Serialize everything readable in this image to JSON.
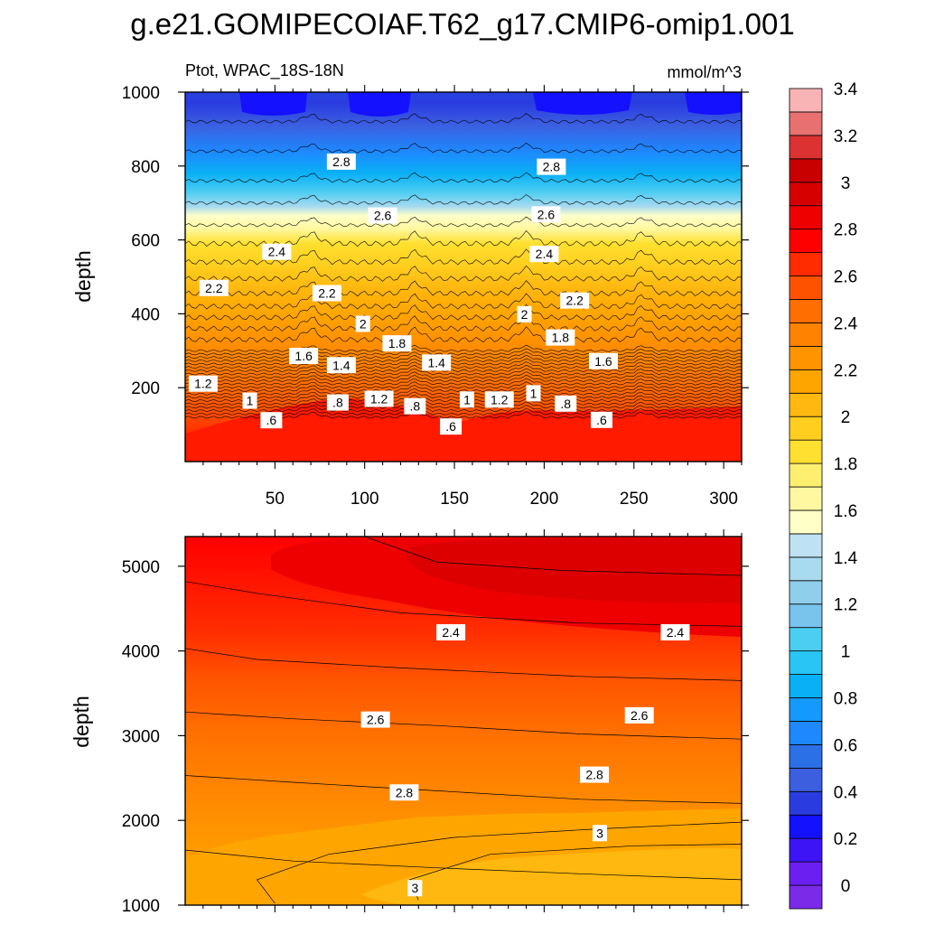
{
  "figure_title": "g.e21.GOMIPECOIAF.T62_g17.CMIP6-omip1.001",
  "variable_label": "Ptot, WPAC_18S-18N",
  "units_label": "mmol/m^3",
  "chart_data": [
    {
      "type": "contour",
      "panel": "upper",
      "xlabel": "",
      "ylabel": "depth",
      "xlim": [
        0,
        310
      ],
      "ylim": [
        1000,
        0
      ],
      "x_ticks": [
        50,
        100,
        150,
        200,
        250,
        300
      ],
      "x_tick_labels": [
        "50",
        "100",
        "150",
        "200",
        "250",
        "300"
      ],
      "y_ticks": [
        200,
        400,
        600,
        800,
        1000
      ],
      "y_tick_labels": [
        "200",
        "400",
        "600",
        "800",
        "1000"
      ],
      "contour_interval": 0.1,
      "contour_labels": [
        {
          "text": ".6",
          "x": 48,
          "y": 112
        },
        {
          "text": "1",
          "x": 36,
          "y": 165
        },
        {
          "text": "1.2",
          "x": 10,
          "y": 211
        },
        {
          "text": ".8",
          "x": 85,
          "y": 160
        },
        {
          "text": "1.2",
          "x": 108,
          "y": 170
        },
        {
          "text": ".8",
          "x": 128,
          "y": 150
        },
        {
          "text": ".6",
          "x": 148,
          "y": 95
        },
        {
          "text": "1",
          "x": 157,
          "y": 168
        },
        {
          "text": "1.2",
          "x": 175,
          "y": 168
        },
        {
          "text": "1",
          "x": 194,
          "y": 185
        },
        {
          "text": ".8",
          "x": 212,
          "y": 157
        },
        {
          "text": ".6",
          "x": 232,
          "y": 113
        },
        {
          "text": "1.6",
          "x": 66,
          "y": 286
        },
        {
          "text": "1.4",
          "x": 87,
          "y": 261
        },
        {
          "text": "1.8",
          "x": 118,
          "y": 320
        },
        {
          "text": "1.4",
          "x": 140,
          "y": 268
        },
        {
          "text": "1.6",
          "x": 233,
          "y": 272
        },
        {
          "text": "1.8",
          "x": 209,
          "y": 336
        },
        {
          "text": "2",
          "x": 99,
          "y": 373
        },
        {
          "text": "2",
          "x": 189,
          "y": 399
        },
        {
          "text": "2.2",
          "x": 16,
          "y": 470
        },
        {
          "text": "2.2",
          "x": 79,
          "y": 456
        },
        {
          "text": "2.2",
          "x": 217,
          "y": 436
        },
        {
          "text": "2.4",
          "x": 51,
          "y": 568
        },
        {
          "text": "2.4",
          "x": 200,
          "y": 562
        },
        {
          "text": "2.6",
          "x": 110,
          "y": 666
        },
        {
          "text": "2.6",
          "x": 201,
          "y": 669
        },
        {
          "text": "2.8",
          "x": 87,
          "y": 812
        },
        {
          "text": "2.8",
          "x": 204,
          "y": 798
        }
      ]
    },
    {
      "type": "contour",
      "panel": "lower",
      "xlabel": "",
      "ylabel": "depth",
      "xlim": [
        0,
        310
      ],
      "ylim": [
        5350,
        1000
      ],
      "y_ticks": [
        1000,
        2000,
        3000,
        4000,
        5000
      ],
      "y_tick_labels": [
        "1000",
        "2000",
        "3000",
        "4000",
        "5000"
      ],
      "contour_interval": 0.1,
      "contour_labels": [
        {
          "text": "3",
          "x": 128,
          "y": 1200
        },
        {
          "text": "3",
          "x": 231,
          "y": 1850
        },
        {
          "text": "2.8",
          "x": 122,
          "y": 2330
        },
        {
          "text": "2.8",
          "x": 228,
          "y": 2540
        },
        {
          "text": "2.6",
          "x": 106,
          "y": 3190
        },
        {
          "text": "2.6",
          "x": 253,
          "y": 3240
        },
        {
          "text": "2.4",
          "x": 148,
          "y": 4220
        },
        {
          "text": "2.4",
          "x": 273,
          "y": 4220
        }
      ]
    }
  ],
  "colorbar": {
    "levels": [
      0,
      0.2,
      0.4,
      0.6,
      0.8,
      1,
      1.2,
      1.4,
      1.6,
      1.8,
      2,
      2.2,
      2.4,
      2.6,
      2.8,
      3,
      3.2,
      3.4
    ],
    "tick_labels": [
      "0",
      "0.2",
      "0.4",
      "0.6",
      "0.8",
      "1",
      "1.2",
      "1.4",
      "1.6",
      "1.8",
      "2",
      "2.2",
      "2.4",
      "2.6",
      "2.8",
      "3",
      "3.2",
      "3.4"
    ],
    "colors": [
      "#7B2AE8",
      "#6B1FF0",
      "#3D14F5",
      "#1411FF",
      "#2A3CE0",
      "#3C5FE0",
      "#2C70E8",
      "#1E88FF",
      "#1499FF",
      "#0AB0F5",
      "#28C5F5",
      "#4CCDF2",
      "#78C4EC",
      "#8FCFEC",
      "#A8DAF0",
      "#BEE2F4",
      "#FFFFC8",
      "#FFF8A0",
      "#FFEF70",
      "#FFE030",
      "#FFCE1E",
      "#FFB810",
      "#FFA500",
      "#FF9400",
      "#FF8200",
      "#FF6E00",
      "#FF5200",
      "#FF2C00",
      "#FF0000",
      "#EE0000",
      "#D70000",
      "#C80000",
      "#DC3232",
      "#E87070",
      "#F8B4B4"
    ]
  }
}
